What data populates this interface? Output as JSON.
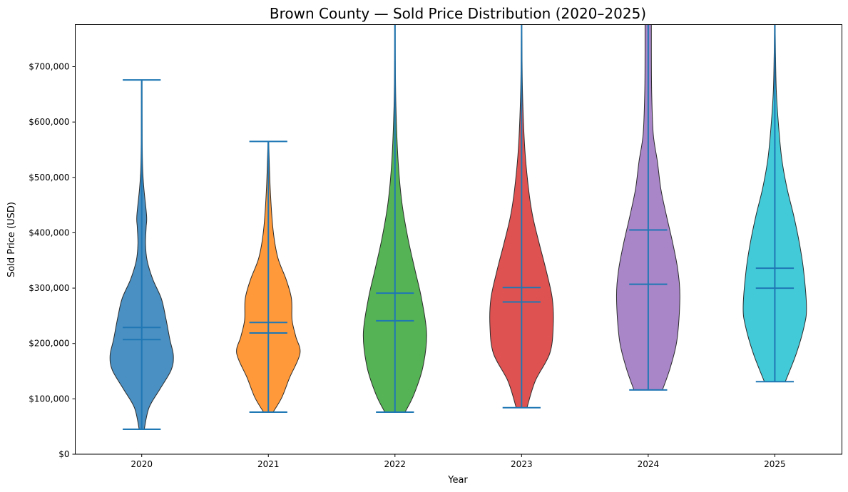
{
  "chart_data": {
    "type": "violin",
    "title": "Brown County — Sold Price Distribution (2020–2025)",
    "xlabel": "Year",
    "ylabel": "Sold Price (USD)",
    "ylim": [
      0,
      776000
    ],
    "xlim": [
      2019.475,
      2025.53
    ],
    "grid": false,
    "yticks": [
      0,
      100000,
      200000,
      300000,
      400000,
      500000,
      600000,
      700000
    ],
    "ytick_labels": [
      "$0",
      "$100,000",
      "$200,000",
      "$300,000",
      "$400,000",
      "$500,000",
      "$600,000",
      "$700,000"
    ],
    "categories": [
      "2020",
      "2021",
      "2022",
      "2023",
      "2024",
      "2025"
    ],
    "line_color": "#1f77b4",
    "edge_color": "#2b2b2b",
    "series": [
      {
        "name": "2020",
        "color": "#4a90c2",
        "min": 45000,
        "max": 676000,
        "mean": 229000,
        "median": 207000,
        "density": [
          [
            45000,
            0.08
          ],
          [
            84000,
            0.23
          ],
          [
            118000,
            0.58
          ],
          [
            152000,
            0.93
          ],
          [
            178000,
            1.0
          ],
          [
            207000,
            0.89
          ],
          [
            246000,
            0.76
          ],
          [
            281000,
            0.62
          ],
          [
            316000,
            0.35
          ],
          [
            350000,
            0.17
          ],
          [
            380000,
            0.12
          ],
          [
            410000,
            0.14
          ],
          [
            430000,
            0.155
          ],
          [
            479000,
            0.07
          ],
          [
            514000,
            0.03
          ],
          [
            568000,
            0.015
          ],
          [
            676000,
            0.01
          ]
        ]
      },
      {
        "name": "2021",
        "color": "#ff993a",
        "min": 76000,
        "max": 565000,
        "mean": 238000,
        "median": 219000,
        "density": [
          [
            76000,
            0.15
          ],
          [
            103000,
            0.43
          ],
          [
            138000,
            0.67
          ],
          [
            182000,
            1.0
          ],
          [
            212000,
            0.87
          ],
          [
            242000,
            0.75
          ],
          [
            281000,
            0.73
          ],
          [
            316000,
            0.56
          ],
          [
            355000,
            0.3
          ],
          [
            405000,
            0.15
          ],
          [
            479000,
            0.06
          ],
          [
            565000,
            0.01
          ]
        ]
      },
      {
        "name": "2022",
        "color": "#55b355",
        "min": 76000,
        "max": null,
        "mean": 291000,
        "median": 241000,
        "density": [
          [
            76000,
            0.32
          ],
          [
            108000,
            0.6
          ],
          [
            157000,
            0.88
          ],
          [
            217000,
            1.0
          ],
          [
            281000,
            0.84
          ],
          [
            331000,
            0.64
          ],
          [
            390000,
            0.41
          ],
          [
            454000,
            0.22
          ],
          [
            529000,
            0.1
          ],
          [
            628000,
            0.03
          ],
          [
            727000,
            0.01
          ],
          [
            776000,
            0.008
          ]
        ]
      },
      {
        "name": "2023",
        "color": "#df5252",
        "min": 84000,
        "max": null,
        "mean": 301000,
        "median": 275000,
        "density": [
          [
            84000,
            0.17
          ],
          [
            132000,
            0.43
          ],
          [
            182000,
            0.89
          ],
          [
            232000,
            1.0
          ],
          [
            281000,
            0.97
          ],
          [
            331000,
            0.78
          ],
          [
            380000,
            0.56
          ],
          [
            430000,
            0.35
          ],
          [
            479000,
            0.22
          ],
          [
            553000,
            0.1
          ],
          [
            652000,
            0.03
          ],
          [
            752000,
            0.01
          ],
          [
            776000,
            0.008
          ]
        ]
      },
      {
        "name": "2024",
        "color": "#a886c8",
        "min": 116000,
        "max": null,
        "mean": 405000,
        "median": 307000,
        "density": [
          [
            116000,
            0.45
          ],
          [
            157000,
            0.7
          ],
          [
            207000,
            0.91
          ],
          [
            281000,
            1.0
          ],
          [
            331000,
            0.94
          ],
          [
            380000,
            0.78
          ],
          [
            430000,
            0.58
          ],
          [
            479000,
            0.4
          ],
          [
            529000,
            0.29
          ],
          [
            578000,
            0.16
          ],
          [
            652000,
            0.11
          ],
          [
            726000,
            0.1
          ],
          [
            776000,
            0.1
          ]
        ]
      },
      {
        "name": "2025",
        "color": "#42cad9",
        "min": 131000,
        "max": null,
        "mean": 336000,
        "median": 300000,
        "density": [
          [
            131000,
            0.33
          ],
          [
            182000,
            0.68
          ],
          [
            232000,
            0.93
          ],
          [
            266000,
            1.0
          ],
          [
            331000,
            0.91
          ],
          [
            380000,
            0.78
          ],
          [
            430000,
            0.6
          ],
          [
            479000,
            0.39
          ],
          [
            529000,
            0.23
          ],
          [
            578000,
            0.14
          ],
          [
            652000,
            0.05
          ],
          [
            727000,
            0.02
          ],
          [
            776000,
            0.01
          ]
        ]
      }
    ]
  }
}
